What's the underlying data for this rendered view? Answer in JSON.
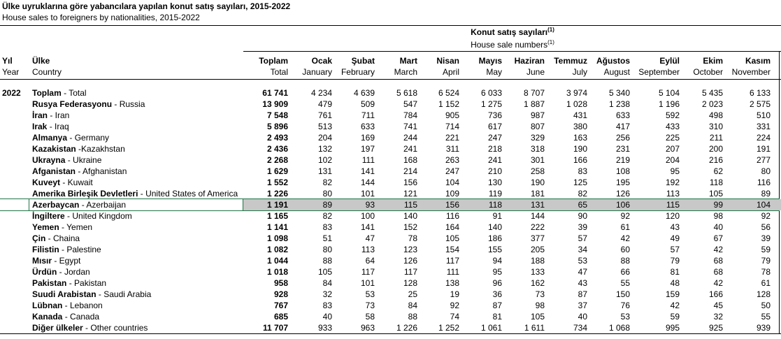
{
  "header": {
    "title": "Ülke uyruklarına göre yabancılara yapılan konut satış sayıları, 2015-2022",
    "subtitle": "House sales to foreigners by nationalities, 2015-2022",
    "group_tr": "Konut satış sayıları",
    "group_tr_note": "(1)",
    "group_en": "House sale numbers",
    "group_en_note": "(1)"
  },
  "table": {
    "columns": [
      {
        "tr": "Yıl",
        "en": "Year"
      },
      {
        "tr": "Ülke",
        "en": "Country"
      },
      {
        "tr": "Toplam",
        "en": "Total"
      },
      {
        "tr": "Ocak",
        "en": "January"
      },
      {
        "tr": "Şubat",
        "en": "February"
      },
      {
        "tr": "Mart",
        "en": "March"
      },
      {
        "tr": "Nisan",
        "en": "April"
      },
      {
        "tr": "Mayıs",
        "en": "May"
      },
      {
        "tr": "Haziran",
        "en": "June"
      },
      {
        "tr": "Temmuz",
        "en": "July"
      },
      {
        "tr": "Ağustos",
        "en": "August"
      },
      {
        "tr": "Eylül",
        "en": "September"
      },
      {
        "tr": "Ekim",
        "en": "October"
      },
      {
        "tr": "Kasım",
        "en": "November"
      }
    ],
    "rows": [
      {
        "year": "2022",
        "country_tr": "Toplam",
        "country_en": " - Total",
        "values": [
          "61 741",
          "4 234",
          "4 639",
          "5 618",
          "6 524",
          "6 033",
          "8 707",
          "3 974",
          "5 340",
          "5 104",
          "5 435",
          "6 133"
        ]
      },
      {
        "country_tr": "Rusya Federasyonu",
        "country_en": " - Russia",
        "values": [
          "13 909",
          "479",
          "509",
          "547",
          "1 152",
          "1 275",
          "1 887",
          "1 028",
          "1 238",
          "1 196",
          "2 023",
          "2 575"
        ]
      },
      {
        "country_tr": "İran",
        "country_en": " - Iran",
        "values": [
          "7 548",
          "761",
          "711",
          "784",
          "905",
          "736",
          "987",
          "431",
          "633",
          "592",
          "498",
          "510"
        ]
      },
      {
        "country_tr": "Irak",
        "country_en": " - Iraq",
        "values": [
          "5 896",
          "513",
          "633",
          "741",
          "714",
          "617",
          "807",
          "380",
          "417",
          "433",
          "310",
          "331"
        ]
      },
      {
        "country_tr": "Almanya",
        "country_en": " - Germany",
        "values": [
          "2 493",
          "204",
          "169",
          "244",
          "221",
          "247",
          "329",
          "163",
          "256",
          "225",
          "211",
          "224"
        ]
      },
      {
        "country_tr": "Kazakistan",
        "country_en": " -Kazakhstan",
        "values": [
          "2 436",
          "132",
          "197",
          "241",
          "311",
          "218",
          "318",
          "190",
          "231",
          "207",
          "200",
          "191"
        ]
      },
      {
        "country_tr": "Ukrayna",
        "country_en": " - Ukraine",
        "values": [
          "2 268",
          "102",
          "111",
          "168",
          "263",
          "241",
          "301",
          "166",
          "219",
          "204",
          "216",
          "277"
        ]
      },
      {
        "country_tr": "Afganistan",
        "country_en": " - Afghanistan",
        "values": [
          "1 629",
          "131",
          "141",
          "214",
          "247",
          "210",
          "258",
          "83",
          "108",
          "95",
          "62",
          "80"
        ]
      },
      {
        "country_tr": "Kuveyt",
        "country_en": " - Kuwait",
        "values": [
          "1 552",
          "82",
          "144",
          "156",
          "104",
          "130",
          "190",
          "125",
          "195",
          "192",
          "118",
          "116"
        ]
      },
      {
        "country_tr": "Amerika Birleşik Devletleri",
        "country_en": " - United States of America",
        "values": [
          "1 226",
          "80",
          "101",
          "121",
          "109",
          "119",
          "181",
          "82",
          "126",
          "113",
          "105",
          "89"
        ]
      },
      {
        "country_tr": "Azerbaycan",
        "country_en": " - Azerbaijan",
        "values": [
          "1 191",
          "89",
          "93",
          "115",
          "156",
          "118",
          "131",
          "65",
          "106",
          "115",
          "99",
          "104"
        ]
      },
      {
        "country_tr": "İngiltere",
        "country_en": " - United Kingdom",
        "values": [
          "1 165",
          "82",
          "100",
          "140",
          "116",
          "91",
          "144",
          "90",
          "92",
          "120",
          "98",
          "92"
        ]
      },
      {
        "country_tr": "Yemen",
        "country_en": " - Yemen",
        "values": [
          "1 141",
          "83",
          "141",
          "152",
          "164",
          "140",
          "222",
          "39",
          "61",
          "43",
          "40",
          "56"
        ]
      },
      {
        "country_tr": "Çin",
        "country_en": " - Chaina",
        "values": [
          "1 098",
          "51",
          "47",
          "78",
          "105",
          "186",
          "377",
          "57",
          "42",
          "49",
          "67",
          "39"
        ]
      },
      {
        "country_tr": "Filistin",
        "country_en": " - Palestine",
        "values": [
          "1 082",
          "80",
          "113",
          "123",
          "154",
          "155",
          "205",
          "34",
          "60",
          "57",
          "42",
          "59"
        ]
      },
      {
        "country_tr": "Mısır",
        "country_en": " - Egypt",
        "values": [
          "1 044",
          "88",
          "64",
          "126",
          "117",
          "94",
          "188",
          "53",
          "88",
          "79",
          "68",
          "79"
        ]
      },
      {
        "country_tr": "Ürdün",
        "country_en": " - Jordan",
        "values": [
          "1 018",
          "105",
          "117",
          "117",
          "111",
          "95",
          "133",
          "47",
          "66",
          "81",
          "68",
          "78"
        ]
      },
      {
        "country_tr": "Pakistan",
        "country_en": " - Pakistan",
        "values": [
          "958",
          "84",
          "101",
          "128",
          "138",
          "96",
          "162",
          "43",
          "55",
          "48",
          "42",
          "61"
        ]
      },
      {
        "country_tr": "Suudi Arabistan",
        "country_en": " - Saudi Arabia",
        "values": [
          "928",
          "32",
          "53",
          "25",
          "19",
          "36",
          "73",
          "87",
          "150",
          "159",
          "166",
          "128"
        ]
      },
      {
        "country_tr": "Lübnan",
        "country_en": " - Lebanon",
        "values": [
          "767",
          "83",
          "73",
          "84",
          "92",
          "87",
          "98",
          "37",
          "76",
          "42",
          "45",
          "50"
        ]
      },
      {
        "country_tr": "Kanada",
        "country_en": " - Canada",
        "values": [
          "685",
          "40",
          "58",
          "88",
          "74",
          "81",
          "105",
          "40",
          "53",
          "59",
          "32",
          "55"
        ]
      },
      {
        "country_tr": "Diğer ülkeler",
        "country_en": " - Other countries",
        "values": [
          "11 707",
          "933",
          "963",
          "1 226",
          "1 252",
          "1 061",
          "1 611",
          "734",
          "1 068",
          "995",
          "925",
          "939"
        ]
      }
    ]
  }
}
